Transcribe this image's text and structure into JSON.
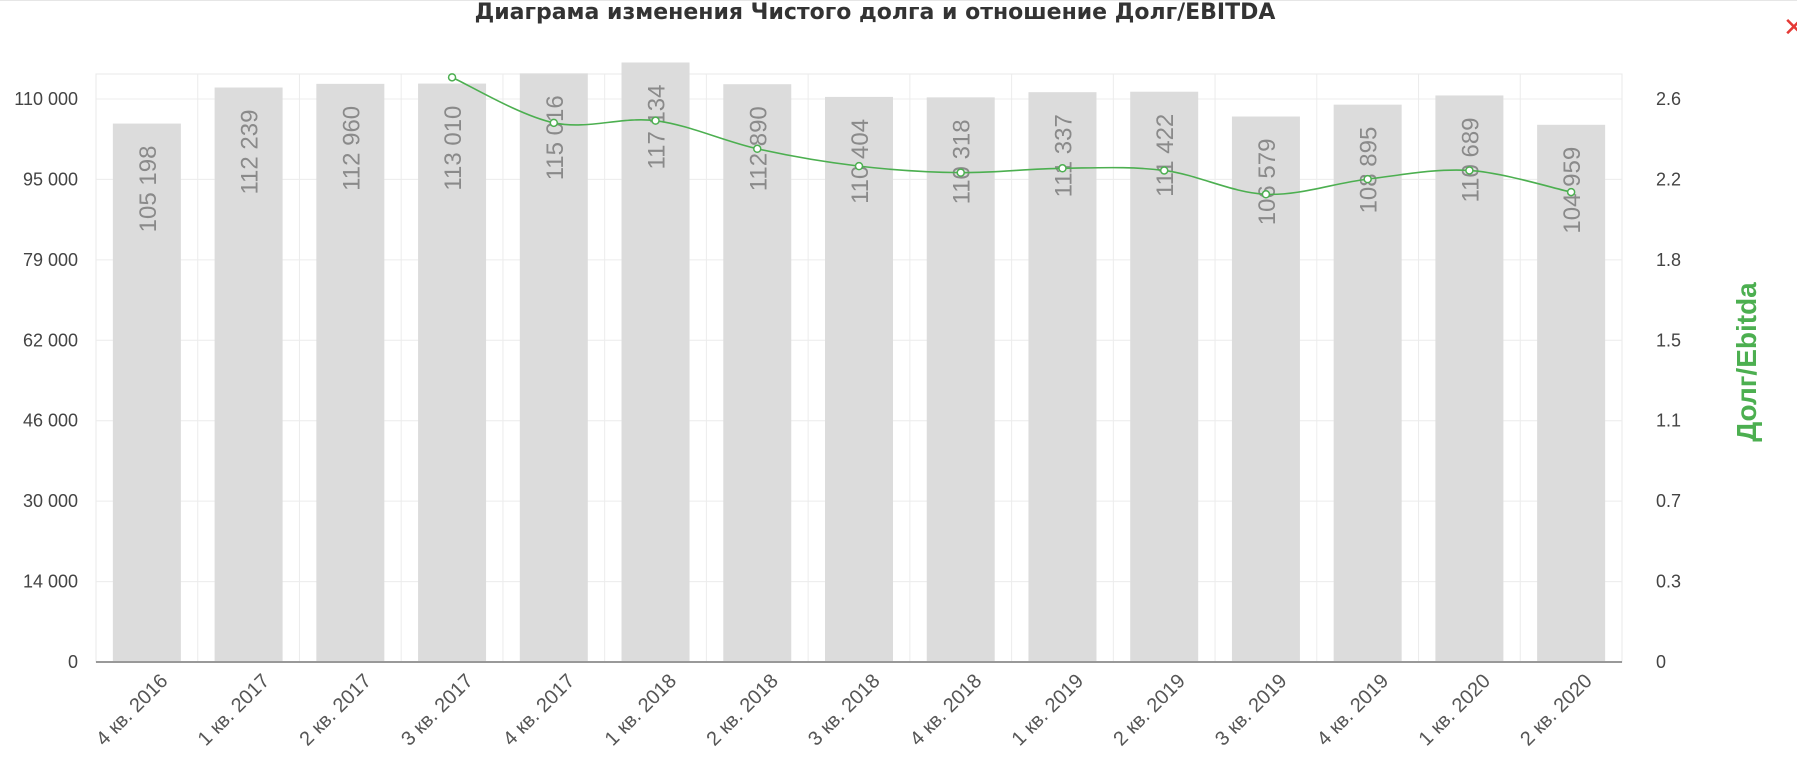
{
  "title": "Диаграма изменения Чистого долга и отношение Долг/EBITDA",
  "close_icon": "close-icon",
  "chart_data": {
    "type": "bar",
    "title": "Диаграма изменения Чистого долга и отношение Долг/EBITDA",
    "categories": [
      "4 кв. 2016",
      "1 кв. 2017",
      "2 кв. 2017",
      "3 кв. 2017",
      "4 кв. 2017",
      "1 кв. 2018",
      "2 кв. 2018",
      "3 кв. 2018",
      "4 кв. 2018",
      "1 кв. 2019",
      "2 кв. 2019",
      "3 кв. 2019",
      "4 кв. 2019",
      "1 кв. 2020",
      "2 кв. 2020"
    ],
    "bar_series": {
      "values": [
        105198,
        112239,
        112960,
        113010,
        115016,
        117134,
        112890,
        110404,
        110318,
        111337,
        111422,
        106579,
        108895,
        110689,
        104959
      ],
      "labels": [
        "105 198",
        "112 239",
        "112 960",
        "113 010",
        "115 016",
        "117 134",
        "112 890",
        "110 404",
        "110 318",
        "111 337",
        "111 422",
        "106 579",
        "108 895",
        "110 689",
        "104 959"
      ],
      "color": "#dcdcdc"
    },
    "line_series": {
      "name": "Долг/Ebitda",
      "values": [
        null,
        null,
        null,
        2.7,
        2.49,
        2.5,
        2.37,
        2.29,
        2.26,
        2.28,
        2.27,
        2.16,
        2.23,
        2.27,
        2.17
      ],
      "color": "#4caf50"
    },
    "y_left": {
      "min": 0,
      "max": 110000,
      "ticks": [
        "0",
        "14 000",
        "30 000",
        "46 000",
        "62 000",
        "79 000",
        "95 000",
        "110 000"
      ]
    },
    "y_right": {
      "label": "Долг/Ebitda",
      "ticks": [
        "0",
        "0.3",
        "0.7",
        "1.1",
        "1.5",
        "1.8",
        "2.2",
        "2.6"
      ]
    },
    "grid": true
  }
}
